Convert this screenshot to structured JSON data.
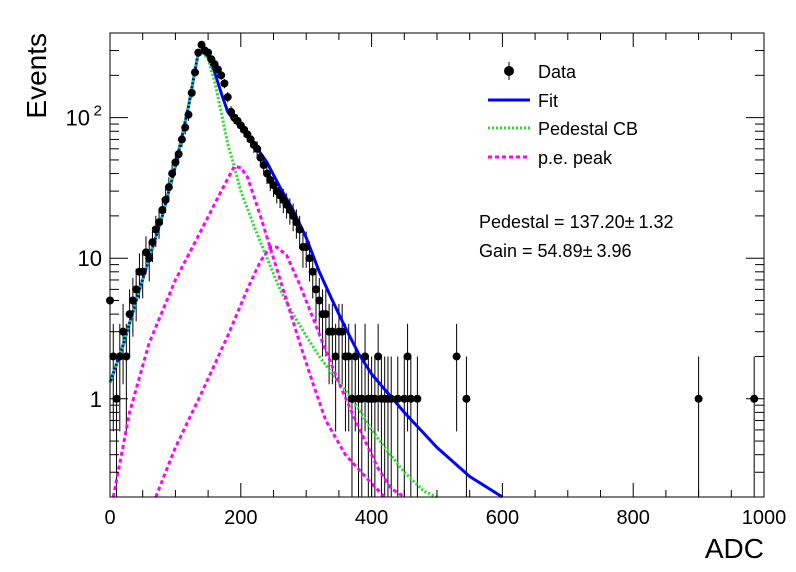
{
  "chart_data": {
    "type": "scatter",
    "xlabel": "ADC",
    "ylabel": "Events",
    "xlim": [
      0,
      1000
    ],
    "ylim": [
      0.2,
      400
    ],
    "yscale": "log",
    "x_ticks": [
      {
        "value": 0,
        "label": "0"
      },
      {
        "value": 200,
        "label": "200"
      },
      {
        "value": 400,
        "label": "400"
      },
      {
        "value": 600,
        "label": "600"
      },
      {
        "value": 800,
        "label": "800"
      },
      {
        "value": 1000,
        "label": "1000"
      }
    ],
    "y_ticks": [
      {
        "value": 1,
        "label": "1"
      },
      {
        "value": 10,
        "label": "10"
      },
      {
        "value": 100,
        "label": "10",
        "exp": "2"
      }
    ],
    "legend": {
      "placement": "top-right",
      "entries": [
        {
          "name": "Data",
          "style": "marker",
          "color": "#000000"
        },
        {
          "name": "Fit",
          "style": "solid",
          "color": "#0000ff"
        },
        {
          "name": "Pedestal CB",
          "style": "dotted",
          "color": "#22dd22"
        },
        {
          "name": "p.e. peak",
          "style": "dashed",
          "color": "#ff00ff"
        }
      ]
    },
    "annotations": [
      {
        "name": "pedestal",
        "label": "Pedestal = 137.20",
        "pm": "±",
        "error": "1.32"
      },
      {
        "name": "gain",
        "label": "Gain = 54.89",
        "pm": "±",
        "error": "3.96"
      }
    ],
    "series": [
      {
        "name": "Data",
        "color": "#000000",
        "points": [
          [
            0,
            5
          ],
          [
            5,
            2
          ],
          [
            10,
            1
          ],
          [
            15,
            2
          ],
          [
            20,
            3
          ],
          [
            25,
            2
          ],
          [
            30,
            4
          ],
          [
            35,
            5
          ],
          [
            40,
            6
          ],
          [
            45,
            8
          ],
          [
            50,
            8
          ],
          [
            55,
            11
          ],
          [
            60,
            10
          ],
          [
            65,
            13
          ],
          [
            70,
            16
          ],
          [
            75,
            18
          ],
          [
            80,
            22
          ],
          [
            85,
            26
          ],
          [
            90,
            32
          ],
          [
            95,
            40
          ],
          [
            100,
            48
          ],
          [
            105,
            55
          ],
          [
            110,
            70
          ],
          [
            115,
            85
          ],
          [
            120,
            105
          ],
          [
            125,
            150
          ],
          [
            130,
            210
          ],
          [
            135,
            290
          ],
          [
            140,
            330
          ],
          [
            145,
            300
          ],
          [
            150,
            290
          ],
          [
            155,
            260
          ],
          [
            160,
            240
          ],
          [
            165,
            220
          ],
          [
            170,
            200
          ],
          [
            175,
            175
          ],
          [
            180,
            140
          ],
          [
            185,
            110
          ],
          [
            190,
            100
          ],
          [
            195,
            95
          ],
          [
            200,
            88
          ],
          [
            205,
            82
          ],
          [
            210,
            76
          ],
          [
            215,
            70
          ],
          [
            220,
            64
          ],
          [
            225,
            60
          ],
          [
            230,
            52
          ],
          [
            235,
            46
          ],
          [
            240,
            40
          ],
          [
            245,
            36
          ],
          [
            250,
            33
          ],
          [
            255,
            30
          ],
          [
            260,
            28
          ],
          [
            265,
            26
          ],
          [
            270,
            24
          ],
          [
            275,
            22
          ],
          [
            280,
            20
          ],
          [
            285,
            18
          ],
          [
            290,
            16
          ],
          [
            295,
            12
          ],
          [
            300,
            12
          ],
          [
            305,
            10
          ],
          [
            310,
            8
          ],
          [
            315,
            6
          ],
          [
            320,
            5
          ],
          [
            325,
            4
          ],
          [
            330,
            4
          ],
          [
            335,
            3
          ],
          [
            340,
            3
          ],
          [
            345,
            2
          ],
          [
            350,
            3
          ],
          [
            355,
            3
          ],
          [
            360,
            2
          ],
          [
            365,
            2
          ],
          [
            370,
            1
          ],
          [
            375,
            2
          ],
          [
            380,
            1
          ],
          [
            385,
            1
          ],
          [
            390,
            2
          ],
          [
            395,
            1
          ],
          [
            400,
            1
          ],
          [
            405,
            1
          ],
          [
            410,
            2
          ],
          [
            415,
            1
          ],
          [
            420,
            1
          ],
          [
            425,
            1
          ],
          [
            430,
            1
          ],
          [
            440,
            1
          ],
          [
            450,
            1
          ],
          [
            455,
            2
          ],
          [
            460,
            1
          ],
          [
            470,
            1
          ],
          [
            530,
            2
          ],
          [
            545,
            1
          ],
          [
            900,
            1
          ],
          [
            985,
            1
          ]
        ]
      },
      {
        "name": "Fit",
        "color": "#0000ff",
        "points": [
          [
            0,
            1.3
          ],
          [
            20,
            2.4
          ],
          [
            40,
            5
          ],
          [
            60,
            10
          ],
          [
            80,
            20
          ],
          [
            100,
            45
          ],
          [
            120,
            120
          ],
          [
            135,
            290
          ],
          [
            140,
            300
          ],
          [
            150,
            270
          ],
          [
            160,
            210
          ],
          [
            170,
            150
          ],
          [
            180,
            110
          ],
          [
            190,
            95
          ],
          [
            200,
            85
          ],
          [
            220,
            65
          ],
          [
            240,
            48
          ],
          [
            260,
            32
          ],
          [
            280,
            22
          ],
          [
            300,
            14
          ],
          [
            320,
            8
          ],
          [
            340,
            5
          ],
          [
            360,
            3.2
          ],
          [
            380,
            2.1
          ],
          [
            400,
            1.5
          ],
          [
            450,
            0.8
          ],
          [
            500,
            0.45
          ],
          [
            550,
            0.28
          ],
          [
            600,
            0.2
          ]
        ]
      },
      {
        "name": "Pedestal CB",
        "color": "#22dd22",
        "points": [
          [
            0,
            1.3
          ],
          [
            20,
            2.4
          ],
          [
            40,
            5
          ],
          [
            60,
            10
          ],
          [
            80,
            20
          ],
          [
            100,
            45
          ],
          [
            120,
            120
          ],
          [
            135,
            290
          ],
          [
            140,
            300
          ],
          [
            150,
            260
          ],
          [
            160,
            180
          ],
          [
            170,
            110
          ],
          [
            180,
            65
          ],
          [
            190,
            45
          ],
          [
            200,
            30
          ],
          [
            220,
            17
          ],
          [
            240,
            10
          ],
          [
            260,
            6
          ],
          [
            280,
            4
          ],
          [
            300,
            2.8
          ],
          [
            320,
            2
          ],
          [
            340,
            1.5
          ],
          [
            360,
            1.15
          ],
          [
            380,
            0.85
          ],
          [
            400,
            0.6
          ],
          [
            420,
            0.45
          ],
          [
            450,
            0.3
          ],
          [
            480,
            0.22
          ],
          [
            500,
            0.2
          ]
        ]
      },
      {
        "name": "p.e. peak",
        "color": "#ff00ff",
        "points": [
          [
            5,
            0.2
          ],
          [
            30,
            0.8
          ],
          [
            60,
            2.5
          ],
          [
            100,
            7
          ],
          [
            140,
            16
          ],
          [
            170,
            30
          ],
          [
            190,
            45
          ],
          [
            200,
            44
          ],
          [
            210,
            38
          ],
          [
            230,
            20
          ],
          [
            250,
            10
          ],
          [
            270,
            5
          ],
          [
            290,
            2.5
          ],
          [
            310,
            1.3
          ],
          [
            330,
            0.7
          ],
          [
            360,
            0.4
          ],
          [
            400,
            0.25
          ],
          [
            420,
            0.2
          ]
        ]
      },
      {
        "name": "p.e. peak",
        "color": "#ff00ff",
        "points": [
          [
            70,
            0.2
          ],
          [
            100,
            0.45
          ],
          [
            140,
            1.1
          ],
          [
            180,
            2.8
          ],
          [
            210,
            6
          ],
          [
            230,
            9.5
          ],
          [
            245,
            12
          ],
          [
            255,
            12
          ],
          [
            270,
            10.5
          ],
          [
            290,
            6.5
          ],
          [
            310,
            3.8
          ],
          [
            330,
            2.2
          ],
          [
            350,
            1.3
          ],
          [
            370,
            0.8
          ],
          [
            390,
            0.5
          ],
          [
            410,
            0.32
          ],
          [
            430,
            0.23
          ],
          [
            450,
            0.2
          ]
        ]
      }
    ]
  }
}
